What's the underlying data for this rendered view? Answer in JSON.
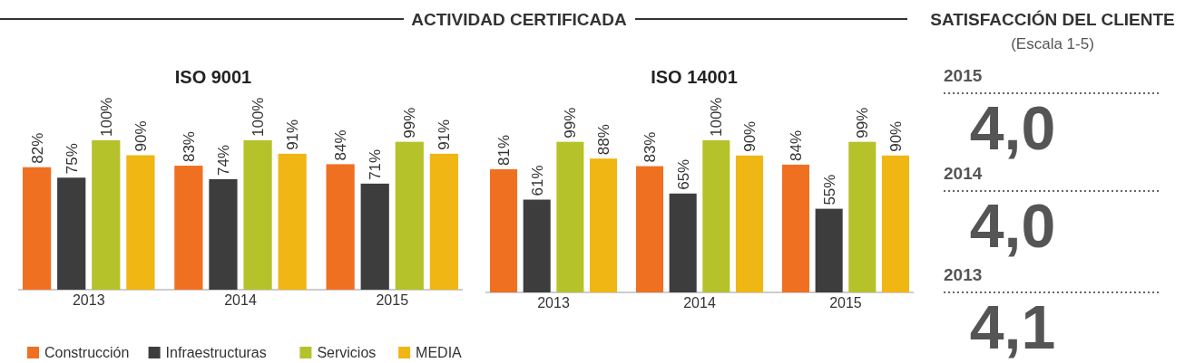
{
  "chart_data": [
    {
      "type": "bar",
      "title": "ISO 9001",
      "annotations": [
        "ACTIVIDAD CERTIFICADA"
      ],
      "categories": [
        "2013",
        "2014",
        "2015"
      ],
      "legend": "bottom",
      "series": [
        {
          "name": "Construcción",
          "color": "#f07022",
          "values": [
            82,
            83,
            84
          ],
          "value_labels": [
            "82%",
            "83%",
            "84%"
          ]
        },
        {
          "name": "Infraestructuras",
          "color": "#3d3d3d",
          "values": [
            75,
            74,
            71
          ],
          "value_labels": [
            "75%",
            "74%",
            "71%"
          ]
        },
        {
          "name": "Servicios",
          "color": "#b5c22a",
          "values": [
            100,
            100,
            99
          ],
          "value_labels": [
            "100%",
            "100%",
            "99%"
          ]
        },
        {
          "name": "MEDIA",
          "color": "#f0b614",
          "values": [
            90,
            91,
            91
          ],
          "value_labels": [
            "90%",
            "91%",
            "91%"
          ]
        }
      ]
    },
    {
      "type": "bar",
      "title": "ISO 14001",
      "categories": [
        "2013",
        "2014",
        "2015"
      ],
      "series": [
        {
          "color": "#f07022",
          "values": [
            81,
            83,
            84
          ],
          "value_labels": [
            "81%",
            "83%",
            "84%"
          ]
        },
        {
          "color": "#3d3d3d",
          "values": [
            61,
            65,
            55
          ],
          "value_labels": [
            "61%",
            "65%",
            "55%"
          ]
        },
        {
          "color": "#b5c22a",
          "values": [
            99,
            100,
            99
          ],
          "value_labels": [
            "99%",
            "100%",
            "99%"
          ]
        },
        {
          "color": "#f0b614",
          "values": [
            88,
            90,
            90
          ],
          "value_labels": [
            "88%",
            "90%",
            "90%"
          ]
        }
      ]
    },
    {
      "type": "other",
      "title": "SATISFACCIÓN DEL CLIENTE",
      "subtitle": "(Escala 1-5)",
      "categories": [
        "2015",
        "2014",
        "2013"
      ],
      "annotations": [
        "4,0",
        "4,0",
        "4,1"
      ]
    }
  ]
}
